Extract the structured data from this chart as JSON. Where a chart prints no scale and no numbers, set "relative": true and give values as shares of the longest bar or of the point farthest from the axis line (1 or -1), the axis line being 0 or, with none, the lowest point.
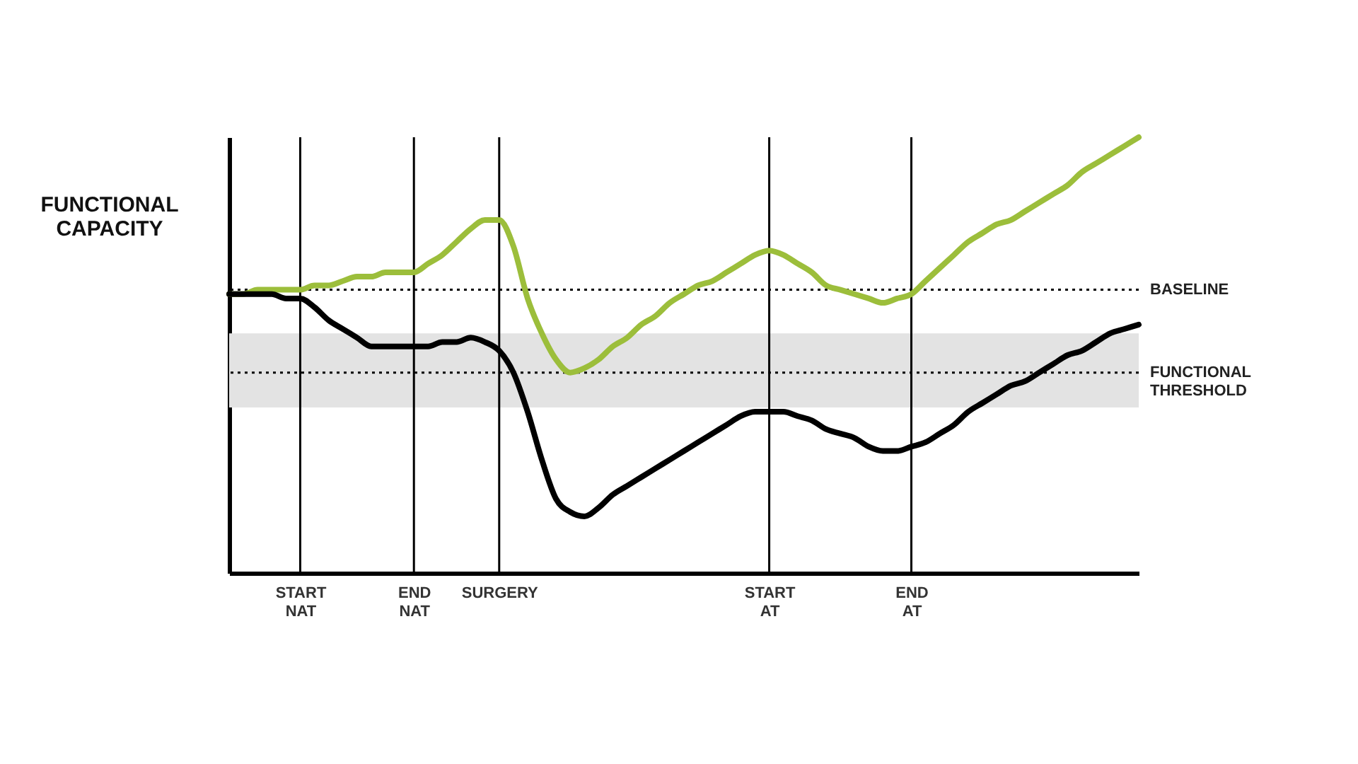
{
  "chart_data": {
    "type": "line",
    "relative": true,
    "ylabel": "FUNCTIONAL CAPACITY",
    "categories": [
      null,
      null,
      null,
      null,
      null,
      "START NAT",
      null,
      null,
      null,
      null,
      null,
      null,
      null,
      "END NAT",
      null,
      null,
      null,
      null,
      null,
      "SURGERY",
      null,
      null,
      null,
      null,
      null,
      null,
      null,
      null,
      null,
      null,
      null,
      null,
      null,
      null,
      null,
      null,
      null,
      null,
      "START AT",
      null,
      null,
      null,
      null,
      null,
      null,
      null,
      null,
      null,
      "END AT",
      null,
      null,
      null,
      null,
      null,
      null,
      null,
      null,
      null,
      null,
      null,
      null,
      null,
      null,
      null,
      null
    ],
    "series": [
      {
        "color": "#9cbe3b",
        "values": [
          0.64,
          0.64,
          0.65,
          0.65,
          0.65,
          0.65,
          0.66,
          0.66,
          0.67,
          0.68,
          0.68,
          0.69,
          0.69,
          0.69,
          0.71,
          0.73,
          0.76,
          0.79,
          0.81,
          0.81,
          0.75,
          0.63,
          0.55,
          0.49,
          0.46,
          0.47,
          0.49,
          0.52,
          0.54,
          0.57,
          0.59,
          0.62,
          0.64,
          0.66,
          0.67,
          0.69,
          0.71,
          0.73,
          0.74,
          0.73,
          0.71,
          0.69,
          0.66,
          0.65,
          0.64,
          0.63,
          0.62,
          0.63,
          0.64,
          0.67,
          0.7,
          0.73,
          0.76,
          0.78,
          0.8,
          0.81,
          0.83,
          0.85,
          0.87,
          0.89,
          0.92,
          0.94,
          0.96,
          0.98,
          1
        ]
      },
      {
        "color": "#000000",
        "values": [
          0.64,
          0.64,
          0.64,
          0.64,
          0.63,
          0.63,
          0.61,
          0.58,
          0.56,
          0.54,
          0.52,
          0.52,
          0.52,
          0.52,
          0.52,
          0.53,
          0.53,
          0.54,
          0.53,
          0.51,
          0.46,
          0.37,
          0.26,
          0.17,
          0.14,
          0.13,
          0.15,
          0.18,
          0.2,
          0.22,
          0.24,
          0.26,
          0.28,
          0.3,
          0.32,
          0.34,
          0.36,
          0.37,
          0.37,
          0.37,
          0.36,
          0.35,
          0.33,
          0.32,
          0.31,
          0.29,
          0.28,
          0.28,
          0.29,
          0.3,
          0.32,
          0.34,
          0.37,
          0.39,
          0.41,
          0.43,
          0.44,
          0.46,
          0.48,
          0.5,
          0.51,
          0.53,
          0.55,
          0.56,
          0.57
        ]
      }
    ],
    "ref_lines": [
      {
        "axis": "x",
        "value": "START NAT",
        "color": "#000000"
      },
      {
        "axis": "x",
        "value": "END NAT",
        "color": "#000000"
      },
      {
        "axis": "x",
        "value": "SURGERY",
        "color": "#000000"
      },
      {
        "axis": "x",
        "value": "START AT",
        "color": "#000000"
      },
      {
        "axis": "x",
        "value": "END AT",
        "color": "#000000"
      },
      {
        "axis": "y",
        "value": 0.65,
        "label": "BASELINE",
        "line_style": "dotted",
        "color": "#000000"
      },
      {
        "axis": "y",
        "value": 0.46,
        "label": "FUNCTIONAL THRESHOLD",
        "line_style": "dotted",
        "color": "#000000"
      }
    ],
    "bands": [
      {
        "axis": "y",
        "from": 0.38,
        "to": 0.55,
        "color": "#e3e3e3"
      }
    ],
    "grid": false,
    "marker": "none",
    "line_style": "solid"
  }
}
